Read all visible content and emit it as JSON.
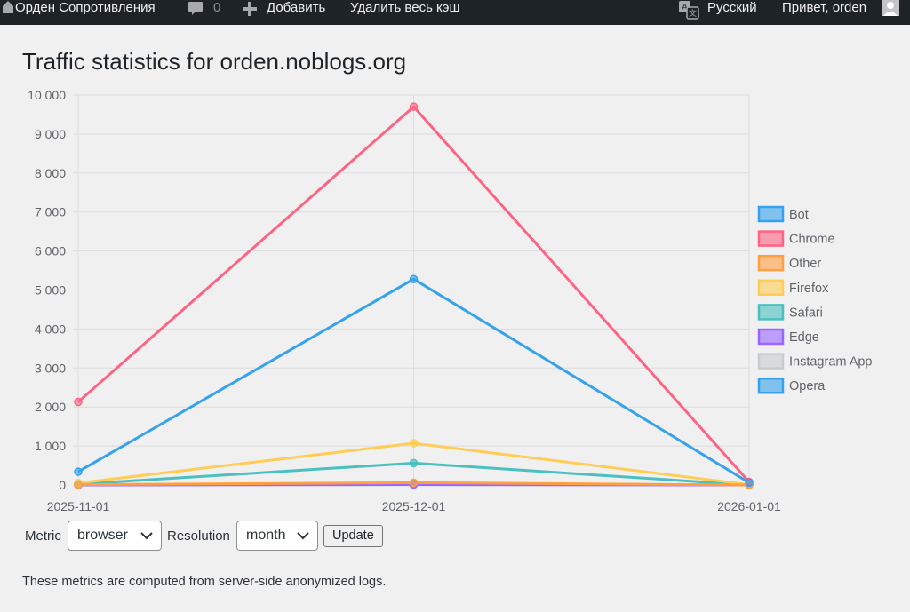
{
  "adminbar": {
    "site_name": "Орден Сопротивления",
    "comments_count": "0",
    "add_new": "Добавить",
    "clear_cache": "Удалить весь кэш",
    "language": "Русский",
    "greeting": "Привет, orden"
  },
  "page": {
    "title": "Traffic statistics for orden.noblogs.org",
    "note": "These metrics are computed from server-side anonymized logs."
  },
  "controls": {
    "metric_label": "Metric",
    "metric_value": "browser",
    "resolution_label": "Resolution",
    "resolution_value": "month",
    "update_label": "Update"
  },
  "chart_data": {
    "type": "line",
    "x": [
      "2025-11-01",
      "2025-12-01",
      "2026-01-01"
    ],
    "ylim": [
      0,
      10000
    ],
    "yticks": [
      0,
      1000,
      2000,
      3000,
      4000,
      5000,
      6000,
      7000,
      8000,
      9000,
      10000
    ],
    "ytick_labels": [
      "0",
      "1 000",
      "2 000",
      "3 000",
      "4 000",
      "5 000",
      "6 000",
      "7 000",
      "8 000",
      "9 000",
      "10 000"
    ],
    "grid": true,
    "legend_position": "right",
    "series": [
      {
        "name": "Bot",
        "color": "#36a2eb",
        "values": [
          340,
          5280,
          60
        ]
      },
      {
        "name": "Chrome",
        "color": "#ff6384",
        "values": [
          2130,
          9700,
          80
        ]
      },
      {
        "name": "Other",
        "color": "#ff9f40",
        "values": [
          10,
          60,
          0
        ]
      },
      {
        "name": "Firefox",
        "color": "#ffcd56",
        "values": [
          50,
          1070,
          10
        ]
      },
      {
        "name": "Safari",
        "color": "#4bc0c0",
        "values": [
          20,
          560,
          0
        ]
      },
      {
        "name": "Edge",
        "color": "#9966ff",
        "values": [
          0,
          10,
          0
        ]
      },
      {
        "name": "Instagram App",
        "color": "#c9cbcf",
        "values": [
          0,
          5,
          0
        ]
      },
      {
        "name": "Opera",
        "color": "#36a2eb",
        "values": [
          0,
          40,
          0
        ]
      }
    ]
  }
}
